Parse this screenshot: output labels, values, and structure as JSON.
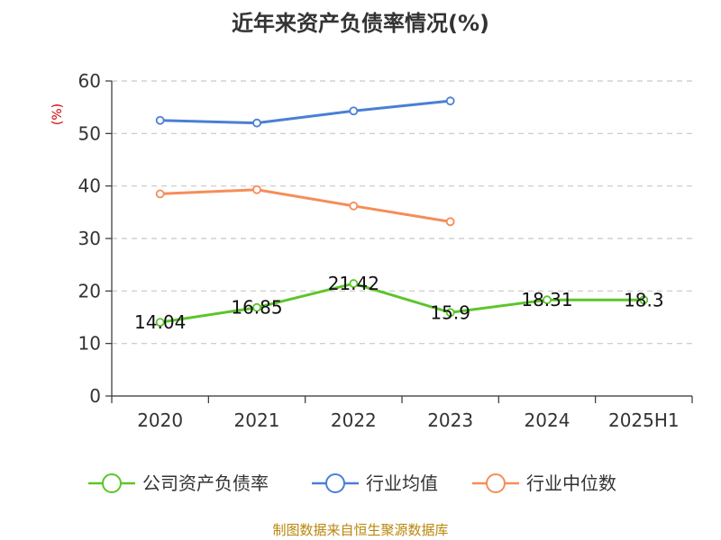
{
  "chart_data": {
    "type": "line",
    "title": "近年来资产负债率情况(%)",
    "ylabel": "(%)",
    "xlabel": "",
    "ylim": [
      0,
      60
    ],
    "yticks": [
      0,
      10,
      20,
      30,
      40,
      50,
      60
    ],
    "categories": [
      "2020",
      "2021",
      "2022",
      "2023",
      "2024",
      "2025H1"
    ],
    "grid": true,
    "legend_position": "bottom",
    "series": [
      {
        "name": "公司资产负债率",
        "color": "#5cc52a",
        "values": [
          14.04,
          16.85,
          21.42,
          15.9,
          18.31,
          18.3
        ],
        "labels": [
          "14.04",
          "16.85",
          "21.42",
          "15.9",
          "18.31",
          "18.3"
        ]
      },
      {
        "name": "行业均值",
        "color": "#4a7fd6",
        "values": [
          52.5,
          52.0,
          54.3,
          56.2,
          null,
          null
        ]
      },
      {
        "name": "行业中位数",
        "color": "#f58d5a",
        "values": [
          38.5,
          39.3,
          36.2,
          33.2,
          null,
          null
        ]
      }
    ],
    "source": "制图数据来自恒生聚源数据库"
  }
}
